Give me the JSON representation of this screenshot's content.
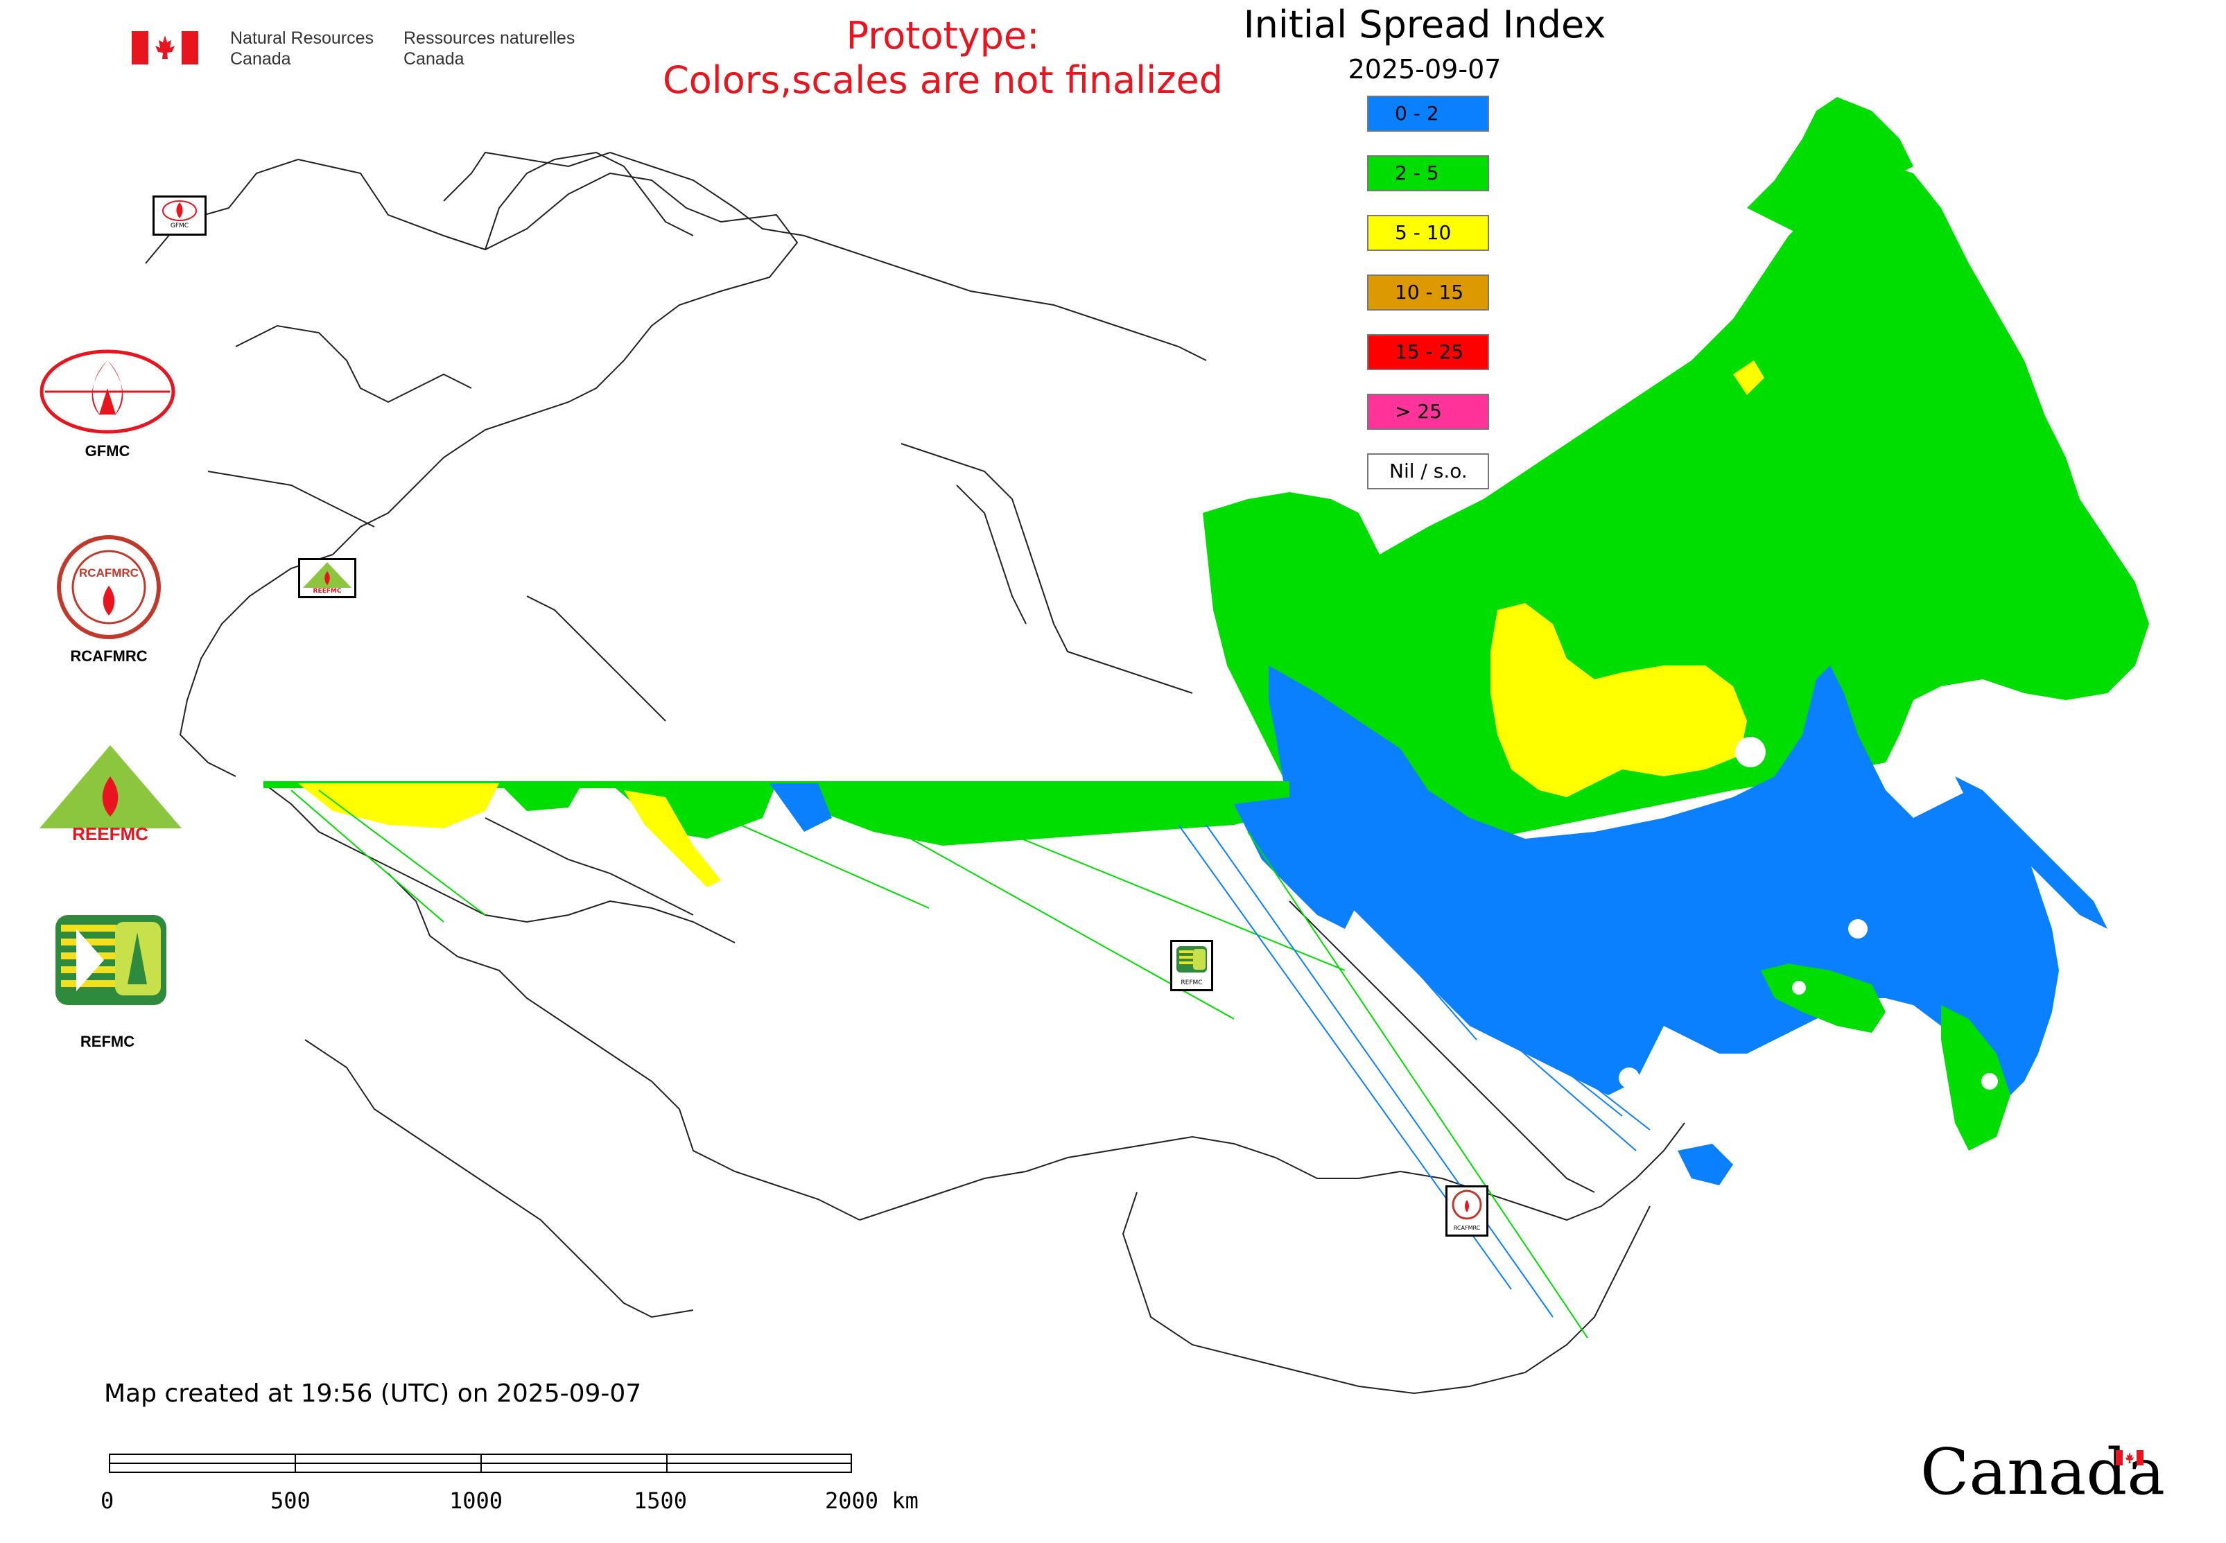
{
  "header": {
    "org_en_1": "Natural Resources",
    "org_en_2": "Canada",
    "org_fr_1": "Ressources naturelles",
    "org_fr_2": "Canada",
    "prototype_line1": "Prototype:",
    "prototype_line2": "Colors,scales are not finalized"
  },
  "legend": {
    "title": "Initial Spread Index",
    "date": "2025-09-07",
    "items": [
      {
        "label": "0 - 2",
        "color": "#0a80ff"
      },
      {
        "label": "2 - 5",
        "color": "#00dd00"
      },
      {
        "label": "5 - 10",
        "color": "#ffff00"
      },
      {
        "label": "10 - 15",
        "color": "#dd9a00"
      },
      {
        "label": "15 - 25",
        "color": "#ff0000"
      },
      {
        "label": "> 25",
        "color": "#ff3399"
      },
      {
        "label": "Nil / s.o.",
        "color": "#ffffff"
      }
    ]
  },
  "partners": [
    {
      "label": "GFMC",
      "icon": "gfmc-logo"
    },
    {
      "label": "RCAFMRC",
      "icon": "rcafmrc-logo"
    },
    {
      "label": "REEFMC",
      "icon": "reefmc-logo"
    },
    {
      "label": "REFMC",
      "icon": "refmc-logo"
    }
  ],
  "map_logo_labels": {
    "gfmc": "GFMC",
    "reefmc": "REEFMC",
    "refmc": "REFMC",
    "rcafmrc": "RCAFMRC"
  },
  "logo_text": {
    "rcafmrc": "RCAFMRC",
    "reefmc": "REEFMC"
  },
  "footer": {
    "created": "Map created at 19:56 (UTC) on 2025-09-07",
    "scale_labels": [
      "0",
      "500",
      "1000",
      "1500",
      "2000 km"
    ],
    "wordmark": "Canada"
  }
}
